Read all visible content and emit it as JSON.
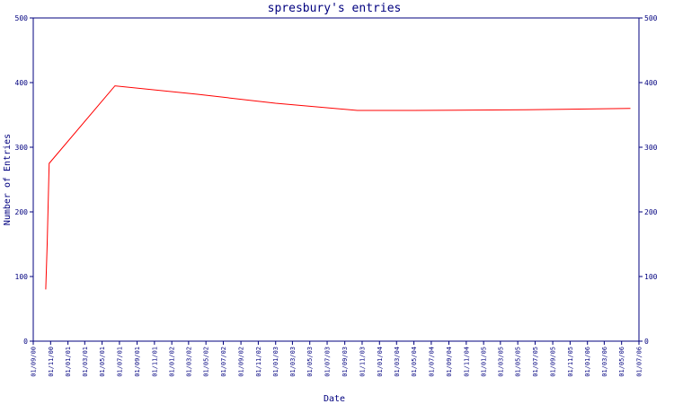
{
  "chart_data": {
    "type": "line",
    "title": "spresbury's entries",
    "xlabel": "Date",
    "ylabel": "Number of Entries",
    "ylim": [
      0,
      500
    ],
    "y_ticks": [
      0,
      100,
      200,
      300,
      400,
      500
    ],
    "y_tick_labels_right": true,
    "grid": false,
    "legend": "none",
    "x_tick_labels": [
      "01/09/00",
      "01/11/00",
      "01/01/01",
      "01/03/01",
      "01/05/01",
      "01/07/01",
      "01/09/01",
      "01/11/01",
      "01/01/02",
      "01/03/02",
      "01/05/02",
      "01/07/02",
      "01/09/02",
      "01/11/02",
      "01/01/03",
      "01/03/03",
      "01/05/03",
      "01/07/03",
      "01/09/03",
      "01/11/03",
      "01/01/04",
      "01/03/04",
      "01/05/04",
      "01/07/04",
      "01/09/04",
      "01/11/04",
      "01/01/05",
      "01/03/05",
      "01/05/05",
      "01/07/05",
      "01/09/05",
      "01/11/05",
      "01/01/06",
      "01/03/06",
      "01/05/06",
      "01/07/06"
    ],
    "series": [
      {
        "color": "#ff0000",
        "x": [
          "2000-10-15",
          "2000-10-20",
          "2000-10-27",
          "2001-06-15",
          "2002-04-01",
          "2003-01-01",
          "2003-10-15",
          "2004-05-01",
          "2005-06-01",
          "2006-06-01"
        ],
        "y": [
          80,
          150,
          275,
          395,
          382,
          368,
          357,
          357,
          358,
          360
        ]
      }
    ]
  }
}
